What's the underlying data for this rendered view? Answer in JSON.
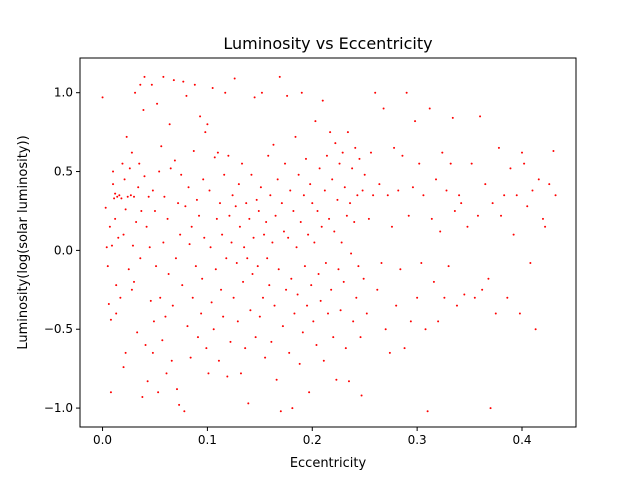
{
  "chart_data": {
    "type": "scatter",
    "title": "Luminosity vs Eccentricity",
    "xlabel": "Eccentricity",
    "ylabel": "Luminosity(log(solar luminosity))",
    "xlim": [
      -0.0215,
      0.4515
    ],
    "ylim": [
      -1.12,
      1.22
    ],
    "xticks": [
      0.0,
      0.1,
      0.2,
      0.3,
      0.4
    ],
    "xtick_labels": [
      "0.0",
      "0.1",
      "0.2",
      "0.3",
      "0.4"
    ],
    "yticks": [
      -1.0,
      -0.5,
      0.0,
      0.5,
      1.0
    ],
    "ytick_labels": [
      "−1.0",
      "−0.5",
      "0.0",
      "0.5",
      "1.0"
    ],
    "grid": false,
    "marker_color": "#ff0000",
    "points": [
      [
        0.0,
        0.97
      ],
      [
        0.003,
        0.27
      ],
      [
        0.004,
        0.02
      ],
      [
        0.005,
        -0.1
      ],
      [
        0.006,
        -0.34
      ],
      [
        0.007,
        0.15
      ],
      [
        0.008,
        -0.9
      ],
      [
        0.008,
        -0.44
      ],
      [
        0.009,
        0.03
      ],
      [
        0.01,
        0.42
      ],
      [
        0.01,
        0.5
      ],
      [
        0.011,
        0.33
      ],
      [
        0.012,
        0.36
      ],
      [
        0.012,
        0.2
      ],
      [
        0.013,
        -0.22
      ],
      [
        0.013,
        -0.4
      ],
      [
        0.014,
        0.34
      ],
      [
        0.015,
        0.08
      ],
      [
        0.016,
        0.35
      ],
      [
        0.017,
        -0.3
      ],
      [
        0.018,
        0.33
      ],
      [
        0.019,
        0.55
      ],
      [
        0.02,
        -0.74
      ],
      [
        0.02,
        0.1
      ],
      [
        0.021,
        0.45
      ],
      [
        0.022,
        -0.65
      ],
      [
        0.022,
        0.26
      ],
      [
        0.023,
        0.72
      ],
      [
        0.024,
        0.34
      ],
      [
        0.025,
        -0.12
      ],
      [
        0.026,
        0.52
      ],
      [
        0.027,
        0.35
      ],
      [
        0.028,
        -0.25
      ],
      [
        0.028,
        0.62
      ],
      [
        0.029,
        0.03
      ],
      [
        0.03,
        -0.2
      ],
      [
        0.03,
        0.34
      ],
      [
        0.031,
        1.0
      ],
      [
        0.032,
        0.18
      ],
      [
        0.033,
        -0.52
      ],
      [
        0.034,
        0.4
      ],
      [
        0.035,
        0.55
      ],
      [
        0.036,
        -0.05
      ],
      [
        0.036,
        1.05
      ],
      [
        0.037,
        0.25
      ],
      [
        0.038,
        -0.93
      ],
      [
        0.039,
        0.89
      ],
      [
        0.04,
        1.1
      ],
      [
        0.04,
        0.47
      ],
      [
        0.041,
        -0.6
      ],
      [
        0.042,
        0.15
      ],
      [
        0.043,
        -0.83
      ],
      [
        0.044,
        0.34
      ],
      [
        0.045,
        0.02
      ],
      [
        0.046,
        -0.32
      ],
      [
        0.047,
        1.05
      ],
      [
        0.048,
        0.38
      ],
      [
        0.048,
        -0.65
      ],
      [
        0.049,
        -0.45
      ],
      [
        0.05,
        0.25
      ],
      [
        0.051,
        -0.1
      ],
      [
        0.052,
        0.93
      ],
      [
        0.053,
        -0.9
      ],
      [
        0.054,
        0.5
      ],
      [
        0.055,
        -0.3
      ],
      [
        0.056,
        0.66
      ],
      [
        0.057,
        -0.57
      ],
      [
        0.058,
        1.1
      ],
      [
        0.058,
        0.05
      ],
      [
        0.059,
        0.34
      ],
      [
        0.06,
        -0.42
      ],
      [
        0.061,
        -0.78
      ],
      [
        0.062,
        0.2
      ],
      [
        0.063,
        -0.15
      ],
      [
        0.064,
        0.8
      ],
      [
        0.065,
        0.52
      ],
      [
        0.066,
        -0.7
      ],
      [
        0.067,
        -0.35
      ],
      [
        0.068,
        1.08
      ],
      [
        0.069,
        0.57
      ],
      [
        0.07,
        -0.05
      ],
      [
        0.071,
        -0.88
      ],
      [
        0.072,
        0.3
      ],
      [
        0.073,
        -0.98
      ],
      [
        0.074,
        0.1
      ],
      [
        0.075,
        0.48
      ],
      [
        0.076,
        -0.22
      ],
      [
        0.077,
        1.07
      ],
      [
        0.078,
        -1.02
      ],
      [
        0.079,
        0.28
      ],
      [
        0.08,
        0.98
      ],
      [
        0.081,
        -0.48
      ],
      [
        0.082,
        0.4
      ],
      [
        0.083,
        0.04
      ],
      [
        0.084,
        -0.68
      ],
      [
        0.085,
        0.15
      ],
      [
        0.086,
        -0.3
      ],
      [
        0.087,
        0.63
      ],
      [
        0.088,
        1.05
      ],
      [
        0.089,
        -0.1
      ],
      [
        0.09,
        0.32
      ],
      [
        0.091,
        -0.55
      ],
      [
        0.092,
        0.22
      ],
      [
        0.093,
        0.85
      ],
      [
        0.094,
        -0.4
      ],
      [
        0.095,
        -0.18
      ],
      [
        0.096,
        0.45
      ],
      [
        0.097,
        0.08
      ],
      [
        0.098,
        0.75
      ],
      [
        0.099,
        -0.62
      ],
      [
        0.1,
        0.8
      ],
      [
        0.101,
        -0.78
      ],
      [
        0.102,
        0.38
      ],
      [
        0.103,
        0.02
      ],
      [
        0.104,
        -0.33
      ],
      [
        0.105,
        1.03
      ],
      [
        0.106,
        -0.5
      ],
      [
        0.107,
        0.59
      ],
      [
        0.108,
        -0.12
      ],
      [
        0.109,
        0.2
      ],
      [
        0.11,
        0.62
      ],
      [
        0.111,
        -0.7
      ],
      [
        0.112,
        0.3
      ],
      [
        0.113,
        -0.25
      ],
      [
        0.114,
        0.1
      ],
      [
        0.115,
        -0.42
      ],
      [
        0.116,
        0.48
      ],
      [
        0.117,
        1.0
      ],
      [
        0.118,
        -0.05
      ],
      [
        0.119,
        -0.8
      ],
      [
        0.12,
        0.6
      ],
      [
        0.121,
        0.22
      ],
      [
        0.122,
        -0.58
      ],
      [
        0.123,
        0.05
      ],
      [
        0.124,
        0.35
      ],
      [
        0.125,
        -0.3
      ],
      [
        0.126,
        1.09
      ],
      [
        0.127,
        0.28
      ],
      [
        0.128,
        -0.08
      ],
      [
        0.129,
        -0.45
      ],
      [
        0.13,
        0.42
      ],
      [
        0.131,
        0.15
      ],
      [
        0.132,
        -0.78
      ],
      [
        0.133,
        0.55
      ],
      [
        0.134,
        -0.2
      ],
      [
        0.135,
        0.02
      ],
      [
        0.136,
        -0.62
      ],
      [
        0.137,
        0.3
      ],
      [
        0.138,
        -0.05
      ],
      [
        0.139,
        -0.97
      ],
      [
        0.14,
        0.2
      ],
      [
        0.141,
        -0.38
      ],
      [
        0.142,
        0.48
      ],
      [
        0.143,
        -0.15
      ],
      [
        0.144,
        0.08
      ],
      [
        0.145,
        0.97
      ],
      [
        0.146,
        -0.55
      ],
      [
        0.147,
        0.32
      ],
      [
        0.148,
        -0.1
      ],
      [
        0.149,
        0.25
      ],
      [
        0.15,
        -0.42
      ],
      [
        0.151,
        0.4
      ],
      [
        0.152,
        1.0
      ],
      [
        0.153,
        -0.3
      ],
      [
        0.154,
        0.1
      ],
      [
        0.155,
        -0.68
      ],
      [
        0.156,
        0.18
      ],
      [
        0.157,
        -0.05
      ],
      [
        0.158,
        0.6
      ],
      [
        0.159,
        -0.22
      ],
      [
        0.16,
        0.35
      ],
      [
        0.161,
        -0.58
      ],
      [
        0.162,
        0.05
      ],
      [
        0.163,
        0.67
      ],
      [
        0.164,
        -0.35
      ],
      [
        0.165,
        0.22
      ],
      [
        0.166,
        -0.82
      ],
      [
        0.167,
        0.45
      ],
      [
        0.168,
        -0.12
      ],
      [
        0.169,
        1.1
      ],
      [
        0.17,
        -1.02
      ],
      [
        0.171,
        0.3
      ],
      [
        0.172,
        -0.48
      ],
      [
        0.173,
        0.12
      ],
      [
        0.174,
        0.55
      ],
      [
        0.175,
        -0.25
      ],
      [
        0.176,
        0.98
      ],
      [
        0.177,
        0.08
      ],
      [
        0.178,
        -0.65
      ],
      [
        0.179,
        0.38
      ],
      [
        0.18,
        -0.18
      ],
      [
        0.181,
        -1.0
      ],
      [
        0.182,
        0.25
      ],
      [
        0.183,
        -0.4
      ],
      [
        0.184,
        0.72
      ],
      [
        0.185,
        0.02
      ],
      [
        0.186,
        -0.28
      ],
      [
        0.187,
        0.48
      ],
      [
        0.188,
        -0.72
      ],
      [
        0.189,
        0.18
      ],
      [
        0.19,
        1.0
      ],
      [
        0.191,
        -0.52
      ],
      [
        0.192,
        0.35
      ],
      [
        0.193,
        -0.1
      ],
      [
        0.194,
        0.58
      ],
      [
        0.195,
        -0.35
      ],
      [
        0.196,
        0.1
      ],
      [
        0.197,
        -0.9
      ],
      [
        0.198,
        0.42
      ],
      [
        0.199,
        -0.22
      ],
      [
        0.2,
        0.3
      ],
      [
        0.201,
        -0.45
      ],
      [
        0.202,
        0.05
      ],
      [
        0.203,
        0.82
      ],
      [
        0.204,
        -0.6
      ],
      [
        0.205,
        0.25
      ],
      [
        0.206,
        -0.15
      ],
      [
        0.207,
        0.52
      ],
      [
        0.208,
        -0.32
      ],
      [
        0.209,
        0.15
      ],
      [
        0.21,
        0.95
      ],
      [
        0.211,
        -0.7
      ],
      [
        0.212,
        0.38
      ],
      [
        0.213,
        -0.08
      ],
      [
        0.214,
        0.6
      ],
      [
        0.215,
        -0.4
      ],
      [
        0.216,
        0.2
      ],
      [
        0.217,
        0.75
      ],
      [
        0.218,
        -0.25
      ],
      [
        0.219,
        0.45
      ],
      [
        0.22,
        -0.55
      ],
      [
        0.221,
        0.12
      ],
      [
        0.222,
        0.68
      ],
      [
        0.223,
        -0.82
      ],
      [
        0.224,
        0.32
      ],
      [
        0.225,
        -0.12
      ],
      [
        0.226,
        0.55
      ],
      [
        0.227,
        -0.38
      ],
      [
        0.228,
        0.05
      ],
      [
        0.229,
        0.62
      ],
      [
        0.23,
        -0.2
      ],
      [
        0.231,
        0.4
      ],
      [
        0.232,
        -0.62
      ],
      [
        0.233,
        0.22
      ],
      [
        0.234,
        0.75
      ],
      [
        0.235,
        -0.83
      ],
      [
        0.236,
        0.3
      ],
      [
        0.237,
        -0.02
      ],
      [
        0.238,
        0.52
      ],
      [
        0.239,
        -0.45
      ],
      [
        0.24,
        0.18
      ],
      [
        0.241,
        0.65
      ],
      [
        0.242,
        -0.3
      ],
      [
        0.243,
        0.35
      ],
      [
        0.244,
        -0.1
      ],
      [
        0.245,
        0.58
      ],
      [
        0.246,
        -0.55
      ],
      [
        0.247,
        -0.92
      ],
      [
        0.248,
        0.38
      ],
      [
        0.249,
        -0.18
      ],
      [
        0.25,
        0.48
      ],
      [
        0.252,
        -0.4
      ],
      [
        0.254,
        0.2
      ],
      [
        0.256,
        0.62
      ],
      [
        0.258,
        0.35
      ],
      [
        0.26,
        1.0
      ],
      [
        0.262,
        -0.25
      ],
      [
        0.264,
        0.42
      ],
      [
        0.266,
        -0.08
      ],
      [
        0.268,
        0.9
      ],
      [
        0.27,
        -0.5
      ],
      [
        0.272,
        0.35
      ],
      [
        0.274,
        -0.65
      ],
      [
        0.276,
        0.15
      ],
      [
        0.278,
        0.65
      ],
      [
        0.28,
        -0.35
      ],
      [
        0.282,
        0.38
      ],
      [
        0.284,
        -0.12
      ],
      [
        0.286,
        0.6
      ],
      [
        0.288,
        -0.62
      ],
      [
        0.29,
        1.0
      ],
      [
        0.292,
        0.22
      ],
      [
        0.294,
        -0.45
      ],
      [
        0.296,
        0.4
      ],
      [
        0.298,
        0.82
      ],
      [
        0.3,
        -0.3
      ],
      [
        0.302,
        0.55
      ],
      [
        0.304,
        -0.08
      ],
      [
        0.306,
        0.35
      ],
      [
        0.308,
        -0.5
      ],
      [
        0.31,
        -1.02
      ],
      [
        0.312,
        0.9
      ],
      [
        0.314,
        0.2
      ],
      [
        0.316,
        -0.2
      ],
      [
        0.318,
        0.45
      ],
      [
        0.32,
        -0.45
      ],
      [
        0.322,
        0.12
      ],
      [
        0.324,
        0.62
      ],
      [
        0.326,
        -0.3
      ],
      [
        0.328,
        0.38
      ],
      [
        0.33,
        -0.1
      ],
      [
        0.332,
        0.55
      ],
      [
        0.334,
        0.84
      ],
      [
        0.336,
        0.25
      ],
      [
        0.338,
        -0.35
      ],
      [
        0.34,
        0.35
      ],
      [
        0.342,
        0.3
      ],
      [
        0.345,
        -0.28
      ],
      [
        0.348,
        0.15
      ],
      [
        0.352,
        0.55
      ],
      [
        0.355,
        -0.3
      ],
      [
        0.358,
        0.22
      ],
      [
        0.36,
        0.85
      ],
      [
        0.362,
        -0.25
      ],
      [
        0.365,
        0.42
      ],
      [
        0.368,
        -0.18
      ],
      [
        0.37,
        -1.0
      ],
      [
        0.372,
        0.3
      ],
      [
        0.375,
        -0.4
      ],
      [
        0.378,
        0.65
      ],
      [
        0.38,
        0.22
      ],
      [
        0.383,
        0.35
      ],
      [
        0.386,
        -0.3
      ],
      [
        0.389,
        0.52
      ],
      [
        0.392,
        0.1
      ],
      [
        0.395,
        0.35
      ],
      [
        0.398,
        -0.4
      ],
      [
        0.4,
        0.62
      ],
      [
        0.402,
        0.55
      ],
      [
        0.405,
        0.28
      ],
      [
        0.408,
        -0.08
      ],
      [
        0.41,
        0.38
      ],
      [
        0.413,
        -0.5
      ],
      [
        0.416,
        0.45
      ],
      [
        0.42,
        0.2
      ],
      [
        0.422,
        0.15
      ],
      [
        0.426,
        0.42
      ],
      [
        0.43,
        0.63
      ],
      [
        0.432,
        0.35
      ]
    ]
  }
}
